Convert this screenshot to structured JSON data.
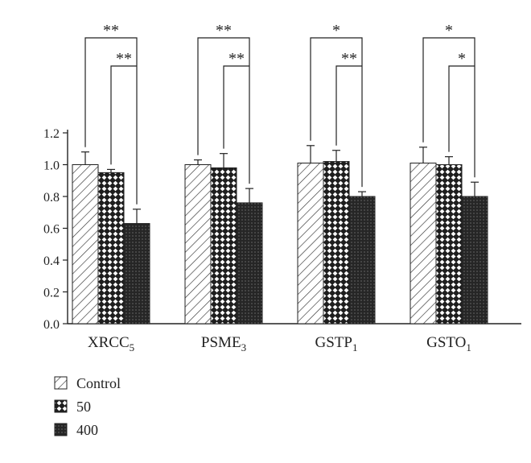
{
  "chart_data": {
    "type": "bar",
    "categories": [
      {
        "base": "XRCC",
        "sub": "5"
      },
      {
        "base": "PSME",
        "sub": "3"
      },
      {
        "base": "GSTP",
        "sub": "1"
      },
      {
        "base": "GSTO",
        "sub": "1"
      }
    ],
    "series": [
      {
        "name": "Control",
        "values": [
          1.0,
          1.0,
          1.01,
          1.01
        ],
        "errors": [
          0.08,
          0.03,
          0.11,
          0.1
        ],
        "pattern": "hatch"
      },
      {
        "name": "50",
        "values": [
          0.95,
          0.98,
          1.02,
          1.0
        ],
        "errors": [
          0.02,
          0.09,
          0.07,
          0.05
        ],
        "pattern": "checker"
      },
      {
        "name": "400",
        "values": [
          0.63,
          0.76,
          0.8,
          0.8
        ],
        "errors": [
          0.09,
          0.09,
          0.03,
          0.09
        ],
        "pattern": "dots"
      }
    ],
    "yticks": [
      "0.0",
      "0.2",
      "0.4",
      "0.6",
      "0.8",
      "1.0",
      "1.2"
    ],
    "ylim": [
      0,
      1.2
    ],
    "significance": [
      {
        "upper": "**",
        "lower": "**"
      },
      {
        "upper": "**",
        "lower": "**"
      },
      {
        "upper": "*",
        "lower": "**"
      },
      {
        "upper": "*",
        "lower": "*"
      }
    ],
    "legend_position": "bottom-left",
    "colors": {
      "axis": "#222222",
      "bar_fill": "#ffffff",
      "dark_fill": "#2a2a2a"
    }
  }
}
